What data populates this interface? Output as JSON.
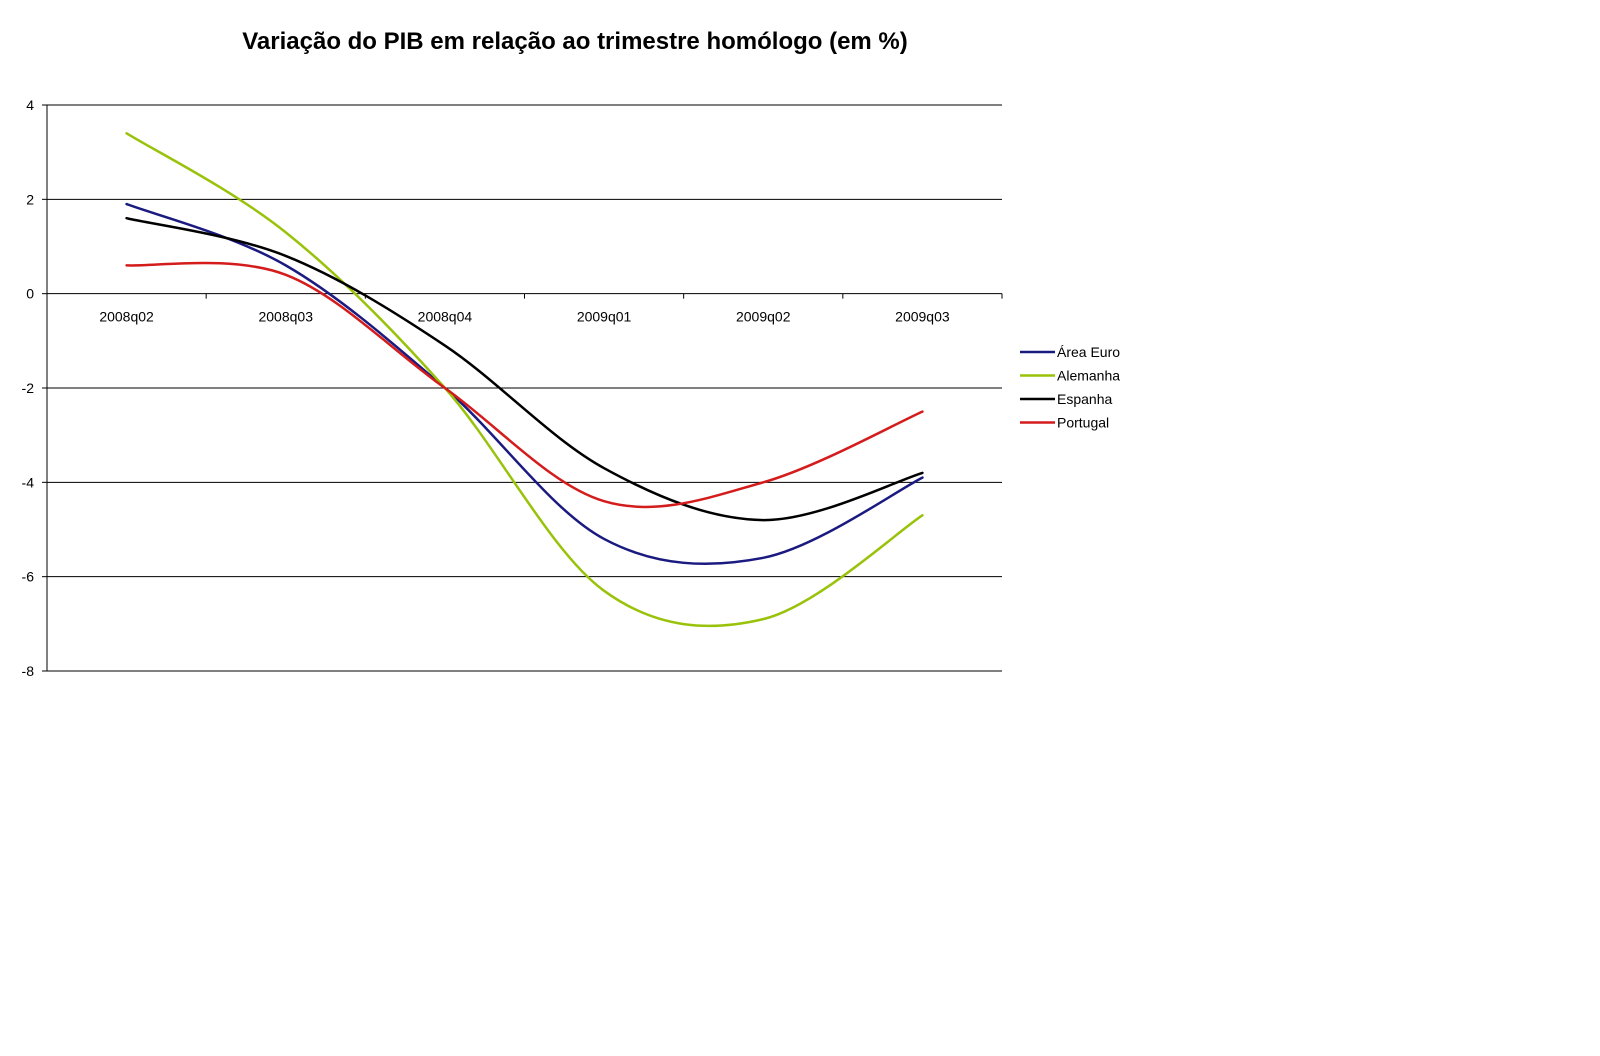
{
  "chart_data": {
    "type": "line",
    "title": "Variação do PIB em relação ao trimestre homólogo (em %)",
    "xlabel": "",
    "ylabel": "",
    "categories": [
      "2008q02",
      "2008q03",
      "2008q04",
      "2009q01",
      "2009q02",
      "2009q03"
    ],
    "ylim": [
      -8,
      4
    ],
    "yticks": [
      4,
      2,
      0,
      -2,
      -4,
      -6,
      -8
    ],
    "grid": true,
    "smooth": true,
    "legend_position": "right",
    "series": [
      {
        "name": "Área Euro",
        "color": "#1a1a80",
        "values": [
          1.9,
          0.6,
          -2.0,
          -5.2,
          -5.6,
          -3.9
        ]
      },
      {
        "name": "Alemanha",
        "color": "#99c20a",
        "values": [
          3.4,
          1.3,
          -2.0,
          -6.3,
          -6.9,
          -4.7
        ]
      },
      {
        "name": "Espanha",
        "color": "#000000",
        "values": [
          1.6,
          0.8,
          -1.1,
          -3.7,
          -4.8,
          -3.8
        ]
      },
      {
        "name": "Portugal",
        "color": "#d41c1c",
        "values": [
          0.6,
          0.4,
          -2.0,
          -4.4,
          -4.0,
          -2.5
        ]
      }
    ]
  }
}
